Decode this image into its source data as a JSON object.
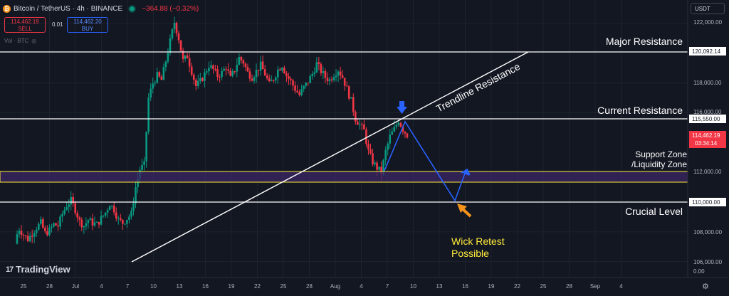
{
  "header": {
    "symbol": "Bitcoin / TetherUS · 4h · BINANCE",
    "change": "−364.88 (−0.32%)",
    "sell_price": "114,462.19",
    "sell_label": "SELL",
    "spread": "0.01",
    "buy_price": "114,462.20",
    "buy_label": "BUY",
    "volume_label": "Vol · BTC",
    "currency": "USDT"
  },
  "price_axis": {
    "ticks": [
      "122,000.00",
      "120,092.14",
      "118,000.00",
      "116,000.00",
      "115,550.00",
      "114,462.19",
      "03:34:14",
      "112,000.00",
      "110,000.00",
      "108,000.00",
      "106,000.00",
      "0.00"
    ]
  },
  "time_axis": {
    "labels": [
      "25",
      "28",
      "Jul",
      "4",
      "7",
      "10",
      "13",
      "16",
      "19",
      "22",
      "25",
      "28",
      "Aug",
      "4",
      "7",
      "10",
      "13",
      "16",
      "19",
      "22",
      "25",
      "28",
      "Sep",
      "4"
    ]
  },
  "annotations": {
    "major_resistance": "Major Resistance",
    "trendline_resistance": "Trendline Resistance",
    "current_resistance": "Current Resistance",
    "support_zone_1": "Support Zone",
    "support_zone_2": "/Liquidity Zone",
    "crucial_level": "Crucial Level",
    "wick_retest_1": "Wick Retest",
    "wick_retest_2": "Possible"
  },
  "branding": {
    "name": "TradingView",
    "mark": "17"
  },
  "colors": {
    "up": "#089981",
    "down": "#f23645",
    "zone": "#ffeb3b",
    "projection": "#2962ff",
    "arrow": "#f7931a",
    "wick_text": "#ffeb3b"
  },
  "chart_data": {
    "type": "candlestick",
    "symbol": "BTCUSDT",
    "timeframe": "4h",
    "ylim": [
      105500,
      123000
    ],
    "last_price": 114462.19,
    "levels": [
      {
        "name": "Major Resistance",
        "price": 120092.14
      },
      {
        "name": "Current Resistance",
        "price": 115550.0
      },
      {
        "name": "Crucial Level",
        "price": 110000.0
      }
    ],
    "zones": [
      {
        "name": "Support Zone /Liquidity Zone",
        "from": 111400,
        "to": 112000
      }
    ],
    "path_closes": [
      107500,
      108200,
      107800,
      107500,
      107900,
      108300,
      108600,
      107900,
      108100,
      108500,
      108400,
      109200,
      109800,
      110100,
      109500,
      108700,
      108400,
      108800,
      108600,
      108500,
      108900,
      109300,
      109900,
      109500,
      108800,
      108600,
      108900,
      109200,
      111000,
      112200,
      112500,
      117000,
      118000,
      118500,
      118200,
      119500,
      120800,
      122100,
      121000,
      119500,
      119800,
      118800,
      117800,
      118100,
      118600,
      119200,
      118900,
      118500,
      118700,
      119100,
      118300,
      118900,
      119700,
      119400,
      118700,
      118400,
      118800,
      119200,
      118600,
      117900,
      118300,
      118900,
      119200,
      118500,
      118100,
      117600,
      117200,
      117700,
      118100,
      118600,
      119300,
      118800,
      118400,
      118200,
      118600,
      118900,
      118400,
      117600,
      116800,
      115600,
      115200,
      114800,
      113400,
      112700,
      112300,
      112000,
      113400,
      114400,
      114900,
      115500,
      114900,
      114500
    ]
  }
}
